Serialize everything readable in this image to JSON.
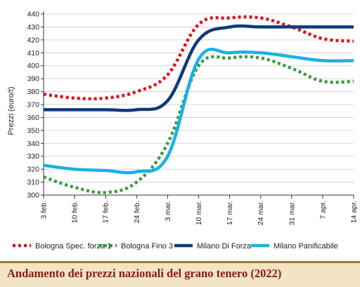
{
  "chart_data": {
    "type": "line",
    "title": "Andamento dei prezzi nazionali del grano tenero (2022)",
    "ylabel": "Prezzi (euro/t)",
    "xlabel": "",
    "ylim": [
      300,
      440
    ],
    "yticks": [
      300,
      310,
      320,
      330,
      340,
      350,
      360,
      370,
      380,
      390,
      400,
      410,
      420,
      430,
      440
    ],
    "categories": [
      "3 feb.",
      "10 feb.",
      "17 feb.",
      "24 feb.",
      "3 mar.",
      "10 mar.",
      "17 mar.",
      "24 mar.",
      "31 mar.",
      "7 apr.",
      "14 apr."
    ],
    "grid": "horizontal",
    "legend_position": "bottom",
    "series": [
      {
        "name": "Bologna Spec. forza 1",
        "color": "#e0101c",
        "style": "dotted",
        "values": [
          378,
          375,
          375,
          380,
          393,
          432,
          437,
          437,
          430,
          421,
          419
        ]
      },
      {
        "name": "Bologna Fino 3",
        "color": "#3a9a3a",
        "style": "dotted",
        "values": [
          314,
          306,
          302,
          310,
          340,
          400,
          406,
          406,
          398,
          388,
          388
        ]
      },
      {
        "name": "Milano Di Forza",
        "color": "#0e3a7a",
        "style": "solid",
        "values": [
          366,
          366,
          366,
          366,
          373,
          420,
          430,
          430,
          430,
          430,
          430
        ]
      },
      {
        "name": "Milano Panificabile",
        "color": "#1ab0e6",
        "style": "solid",
        "values": [
          323,
          320,
          319,
          318,
          330,
          405,
          410,
          410,
          407,
          404,
          404
        ]
      }
    ]
  },
  "footer": {
    "title": "Andamento dei prezzi nazionali del grano tenero (2022)"
  }
}
